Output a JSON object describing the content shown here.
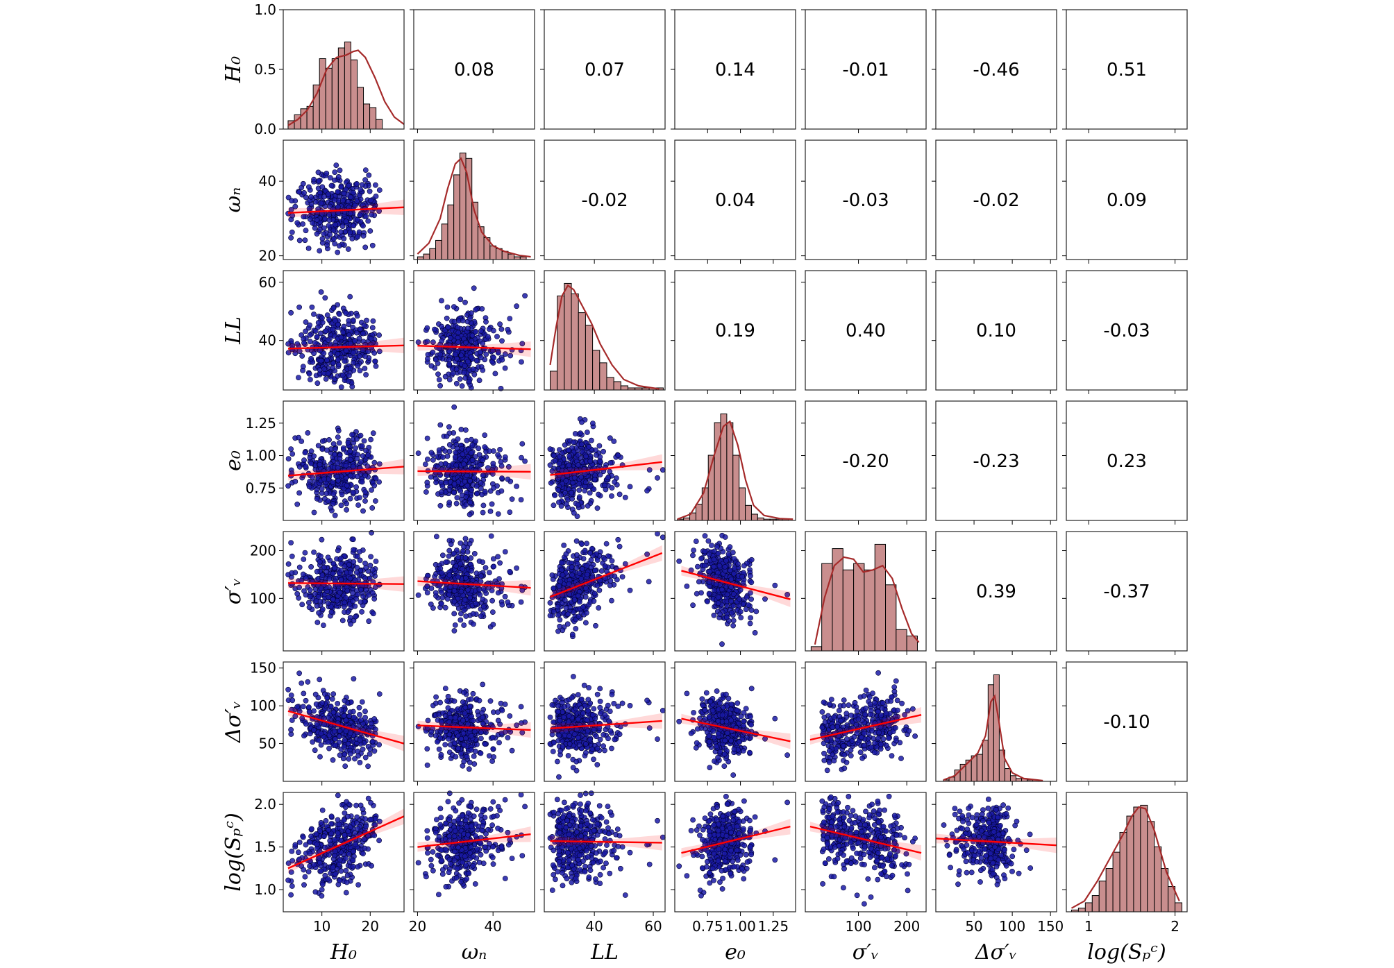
{
  "chart_data": {
    "type": "scatter",
    "title": "",
    "variables": [
      {
        "label": "H₀",
        "range": [
          2,
          27
        ],
        "ticks": [
          10,
          20
        ],
        "tick_labels": [
          "10",
          "20"
        ]
      },
      {
        "label": "ωₙ",
        "range": [
          19,
          51
        ],
        "ticks": [
          20,
          40
        ],
        "tick_labels": [
          "20",
          "40"
        ]
      },
      {
        "label": "LL",
        "range": [
          23,
          64
        ],
        "ticks": [
          40,
          60
        ],
        "tick_labels": [
          "40",
          "60"
        ]
      },
      {
        "label": "e₀",
        "range": [
          0.5,
          1.42
        ],
        "ticks": [
          0.75,
          1.0,
          1.25
        ],
        "tick_labels": [
          "0.75",
          "1.00",
          "1.25"
        ]
      },
      {
        "label": "σ′ᵥ",
        "range": [
          -10,
          240
        ],
        "ticks": [
          100,
          200
        ],
        "tick_labels": [
          "100",
          "200"
        ]
      },
      {
        "label": "Δσ′ᵥ",
        "range": [
          0,
          158
        ],
        "ticks": [
          50,
          100,
          150
        ],
        "tick_labels": [
          "50",
          "100",
          "150"
        ]
      },
      {
        "label": "log(Sₚᶜ)",
        "range": [
          0.74,
          2.14
        ],
        "ticks": [
          1,
          2
        ],
        "tick_labels": [
          "1",
          "2"
        ]
      }
    ],
    "row_ticks": [
      {
        "ticks": [
          0.0,
          0.5,
          1.0
        ],
        "tick_labels": [
          "0.0",
          "0.5",
          "1.0"
        ],
        "range": [
          0,
          1
        ]
      },
      {
        "ticks": [
          20,
          40
        ],
        "tick_labels": [
          "20",
          "40"
        ],
        "range": [
          19,
          51
        ]
      },
      {
        "ticks": [
          40,
          60
        ],
        "tick_labels": [
          "40",
          "60"
        ],
        "range": [
          23,
          64
        ]
      },
      {
        "ticks": [
          0.75,
          1.0,
          1.25
        ],
        "tick_labels": [
          "0.75",
          "1.00",
          "1.25"
        ],
        "range": [
          0.5,
          1.42
        ]
      },
      {
        "ticks": [
          100,
          200
        ],
        "tick_labels": [
          "100",
          "200"
        ],
        "range": [
          -10,
          240
        ]
      },
      {
        "ticks": [
          50,
          100,
          150
        ],
        "tick_labels": [
          "50",
          "100",
          "150"
        ],
        "range": [
          0,
          158
        ]
      },
      {
        "ticks": [
          1.0,
          1.5,
          2.0
        ],
        "tick_labels": [
          "1.0",
          "1.5",
          "2.0"
        ],
        "range": [
          0.74,
          2.14
        ]
      }
    ],
    "correlations": [
      {
        "row": 0,
        "col": 1,
        "value": "0.08"
      },
      {
        "row": 0,
        "col": 2,
        "value": "0.07"
      },
      {
        "row": 0,
        "col": 3,
        "value": "0.14"
      },
      {
        "row": 0,
        "col": 4,
        "value": "-0.01"
      },
      {
        "row": 0,
        "col": 5,
        "value": "-0.46"
      },
      {
        "row": 0,
        "col": 6,
        "value": "0.51"
      },
      {
        "row": 1,
        "col": 2,
        "value": "-0.02"
      },
      {
        "row": 1,
        "col": 3,
        "value": "0.04"
      },
      {
        "row": 1,
        "col": 4,
        "value": "-0.03"
      },
      {
        "row": 1,
        "col": 5,
        "value": "-0.02"
      },
      {
        "row": 1,
        "col": 6,
        "value": "0.09"
      },
      {
        "row": 2,
        "col": 3,
        "value": "0.19"
      },
      {
        "row": 2,
        "col": 4,
        "value": "0.40"
      },
      {
        "row": 2,
        "col": 5,
        "value": "0.10"
      },
      {
        "row": 2,
        "col": 6,
        "value": "-0.03"
      },
      {
        "row": 3,
        "col": 4,
        "value": "-0.20"
      },
      {
        "row": 3,
        "col": 5,
        "value": "-0.23"
      },
      {
        "row": 3,
        "col": 6,
        "value": "0.23"
      },
      {
        "row": 4,
        "col": 5,
        "value": "0.39"
      },
      {
        "row": 4,
        "col": 6,
        "value": "-0.37"
      },
      {
        "row": 5,
        "col": 6,
        "value": "-0.10"
      }
    ],
    "histograms": [
      {
        "var": 0,
        "bin_start": 3,
        "bin_width": 1.3,
        "heights": [
          0.07,
          0.12,
          0.17,
          0.19,
          0.37,
          0.59,
          0.51,
          0.59,
          0.68,
          0.73,
          0.58,
          0.35,
          0.21,
          0.18,
          0.08
        ],
        "kde": [
          [
            3,
            0.03
          ],
          [
            5,
            0.08
          ],
          [
            7,
            0.16
          ],
          [
            9,
            0.3
          ],
          [
            11,
            0.5
          ],
          [
            13,
            0.6
          ],
          [
            15,
            0.62
          ],
          [
            16.5,
            0.65
          ],
          [
            17.5,
            0.66
          ],
          [
            19,
            0.6
          ],
          [
            21,
            0.43
          ],
          [
            23,
            0.23
          ],
          [
            25,
            0.1
          ],
          [
            27,
            0.04
          ]
        ]
      },
      {
        "var": 1,
        "bin_start": 20,
        "bin_width": 1.6,
        "heights": [
          0.01,
          0.02,
          0.04,
          0.07,
          0.13,
          0.2,
          0.31,
          0.39,
          0.37,
          0.21,
          0.12,
          0.08,
          0.05,
          0.04,
          0.03,
          0.02,
          0.01,
          0.01
        ],
        "kde": [
          [
            20,
            0.02
          ],
          [
            23,
            0.06
          ],
          [
            26,
            0.15
          ],
          [
            28,
            0.26
          ],
          [
            30,
            0.35
          ],
          [
            31.5,
            0.37
          ],
          [
            33,
            0.32
          ],
          [
            35,
            0.18
          ],
          [
            37,
            0.1
          ],
          [
            40,
            0.05
          ],
          [
            43,
            0.03
          ],
          [
            47,
            0.015
          ],
          [
            50,
            0.01
          ]
        ]
      },
      {
        "var": 2,
        "bin_start": 25,
        "bin_width": 2.4,
        "heights": [
          0.09,
          0.45,
          0.51,
          0.46,
          0.37,
          0.31,
          0.19,
          0.13,
          0.06,
          0.04,
          0.02,
          0.01,
          0.01,
          0.01,
          0.01,
          0.01
        ],
        "kde": [
          [
            25,
            0.12
          ],
          [
            27,
            0.3
          ],
          [
            29,
            0.45
          ],
          [
            31,
            0.5
          ],
          [
            33,
            0.48
          ],
          [
            36,
            0.4
          ],
          [
            39,
            0.32
          ],
          [
            42,
            0.22
          ],
          [
            46,
            0.12
          ],
          [
            50,
            0.05
          ],
          [
            55,
            0.02
          ],
          [
            62,
            0.005
          ]
        ]
      },
      {
        "var": 3,
        "bin_start": 0.52,
        "bin_width": 0.047,
        "heights": [
          0.01,
          0.02,
          0.06,
          0.13,
          0.26,
          0.52,
          0.78,
          0.85,
          0.78,
          0.52,
          0.26,
          0.12,
          0.05,
          0.02,
          0.01,
          0.01,
          0.01,
          0.01
        ],
        "kde": [
          [
            0.52,
            0.01
          ],
          [
            0.62,
            0.05
          ],
          [
            0.72,
            0.22
          ],
          [
            0.8,
            0.52
          ],
          [
            0.87,
            0.75
          ],
          [
            0.92,
            0.79
          ],
          [
            0.98,
            0.6
          ],
          [
            1.04,
            0.32
          ],
          [
            1.1,
            0.12
          ],
          [
            1.18,
            0.04
          ],
          [
            1.3,
            0.015
          ],
          [
            1.4,
            0.01
          ]
        ]
      },
      {
        "var": 4,
        "bin_start": 2,
        "bin_width": 22,
        "heights": [
          0.02,
          0.41,
          0.48,
          0.38,
          0.41,
          0.38,
          0.5,
          0.31,
          0.1,
          0.07
        ],
        "kde": [
          [
            10,
            0.03
          ],
          [
            30,
            0.25
          ],
          [
            50,
            0.4
          ],
          [
            70,
            0.44
          ],
          [
            90,
            0.43
          ],
          [
            110,
            0.37
          ],
          [
            130,
            0.38
          ],
          [
            150,
            0.4
          ],
          [
            170,
            0.34
          ],
          [
            190,
            0.2
          ],
          [
            210,
            0.08
          ],
          [
            225,
            0.04
          ]
        ]
      },
      {
        "var": 5,
        "bin_start": 10,
        "bin_width": 7.3,
        "heights": [
          0.01,
          0.03,
          0.08,
          0.12,
          0.15,
          0.18,
          0.19,
          0.29,
          0.68,
          0.75,
          0.22,
          0.09,
          0.04,
          0.02,
          0.02,
          0.01,
          0.01
        ],
        "kde": [
          [
            10,
            0.01
          ],
          [
            25,
            0.04
          ],
          [
            40,
            0.12
          ],
          [
            55,
            0.2
          ],
          [
            65,
            0.32
          ],
          [
            72,
            0.56
          ],
          [
            77,
            0.6
          ],
          [
            82,
            0.44
          ],
          [
            90,
            0.16
          ],
          [
            100,
            0.06
          ],
          [
            115,
            0.02
          ],
          [
            140,
            0.005
          ]
        ]
      },
      {
        "var": 6,
        "bin_start": 0.8,
        "bin_width": 0.08,
        "heights": [
          0.01,
          0.02,
          0.05,
          0.09,
          0.17,
          0.24,
          0.33,
          0.44,
          0.53,
          0.58,
          0.59,
          0.5,
          0.36,
          0.24,
          0.14,
          0.05
        ],
        "kde": [
          [
            0.8,
            0.02
          ],
          [
            0.95,
            0.06
          ],
          [
            1.1,
            0.17
          ],
          [
            1.25,
            0.3
          ],
          [
            1.4,
            0.43
          ],
          [
            1.5,
            0.53
          ],
          [
            1.58,
            0.58
          ],
          [
            1.66,
            0.57
          ],
          [
            1.76,
            0.45
          ],
          [
            1.9,
            0.22
          ],
          [
            2.05,
            0.06
          ]
        ]
      }
    ],
    "regression_lines": [
      {
        "row": 1,
        "col": 0,
        "x": [
          3,
          27
        ],
        "y": [
          31.5,
          33.0
        ]
      },
      {
        "row": 2,
        "col": 0,
        "x": [
          3,
          27
        ],
        "y": [
          37.2,
          38.3
        ]
      },
      {
        "row": 2,
        "col": 1,
        "x": [
          20,
          50
        ],
        "y": [
          38.2,
          37.0
        ]
      },
      {
        "row": 3,
        "col": 0,
        "x": [
          3,
          27
        ],
        "y": [
          0.845,
          0.915
        ]
      },
      {
        "row": 3,
        "col": 1,
        "x": [
          20,
          50
        ],
        "y": [
          0.88,
          0.875
        ]
      },
      {
        "row": 3,
        "col": 2,
        "x": [
          25,
          63
        ],
        "y": [
          0.85,
          0.95
        ]
      },
      {
        "row": 4,
        "col": 0,
        "x": [
          3,
          27
        ],
        "y": [
          132,
          130
        ]
      },
      {
        "row": 4,
        "col": 1,
        "x": [
          20,
          50
        ],
        "y": [
          136,
          122
        ]
      },
      {
        "row": 4,
        "col": 2,
        "x": [
          25,
          63
        ],
        "y": [
          103,
          195
        ]
      },
      {
        "row": 4,
        "col": 3,
        "x": [
          0.55,
          1.38
        ],
        "y": [
          158,
          98
        ]
      },
      {
        "row": 5,
        "col": 0,
        "x": [
          3,
          27
        ],
        "y": [
          93,
          50
        ]
      },
      {
        "row": 5,
        "col": 1,
        "x": [
          20,
          50
        ],
        "y": [
          74,
          68
        ]
      },
      {
        "row": 5,
        "col": 2,
        "x": [
          25,
          63
        ],
        "y": [
          70,
          80
        ]
      },
      {
        "row": 5,
        "col": 3,
        "x": [
          0.55,
          1.38
        ],
        "y": [
          83,
          53
        ]
      },
      {
        "row": 5,
        "col": 4,
        "x": [
          0,
          230
        ],
        "y": [
          55,
          88
        ]
      },
      {
        "row": 6,
        "col": 0,
        "x": [
          3,
          27
        ],
        "y": [
          1.25,
          1.86
        ]
      },
      {
        "row": 6,
        "col": 1,
        "x": [
          20,
          50
        ],
        "y": [
          1.5,
          1.65
        ]
      },
      {
        "row": 6,
        "col": 2,
        "x": [
          25,
          63
        ],
        "y": [
          1.57,
          1.55
        ]
      },
      {
        "row": 6,
        "col": 3,
        "x": [
          0.55,
          1.38
        ],
        "y": [
          1.43,
          1.74
        ]
      },
      {
        "row": 6,
        "col": 4,
        "x": [
          0,
          230
        ],
        "y": [
          1.74,
          1.43
        ]
      },
      {
        "row": 6,
        "col": 5,
        "x": [
          0,
          158
        ],
        "y": [
          1.6,
          1.52
        ]
      }
    ],
    "scatter_point_color": "#1a1aa6",
    "regression_color": "#ff0000",
    "histogram_fill": "#c98e8e",
    "kde_color": "#a52a2a",
    "grid": false,
    "legend": "none"
  }
}
